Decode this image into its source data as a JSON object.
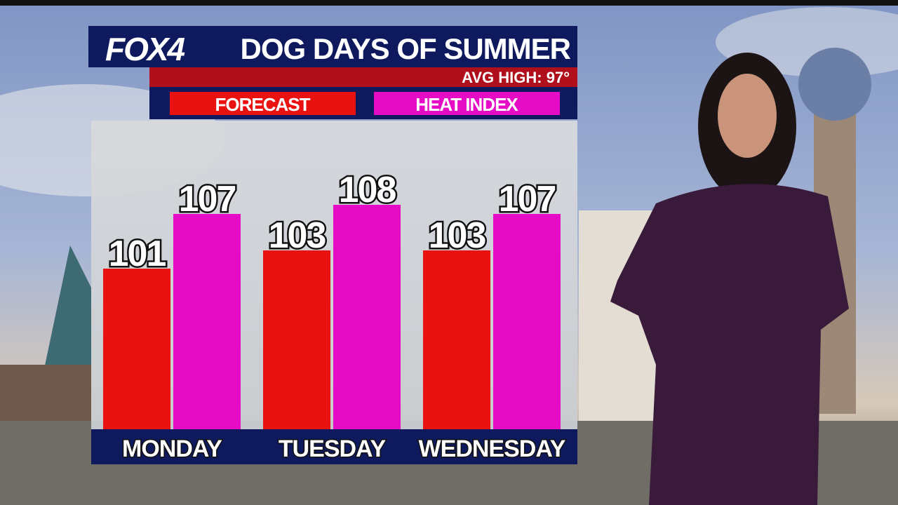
{
  "chart_data": {
    "type": "bar",
    "brand": "FOX4",
    "title": "DOG DAYS OF SUMMER",
    "subtitle": "AVG HIGH: 97°",
    "categories": [
      "MONDAY",
      "TUESDAY",
      "WEDNESDAY"
    ],
    "series": [
      {
        "name": "FORECAST",
        "color": "#ea1111",
        "values": [
          101,
          103,
          103
        ]
      },
      {
        "name": "HEAT INDEX",
        "color": "#e60cc5",
        "values": [
          107,
          108,
          107
        ]
      }
    ]
  }
}
